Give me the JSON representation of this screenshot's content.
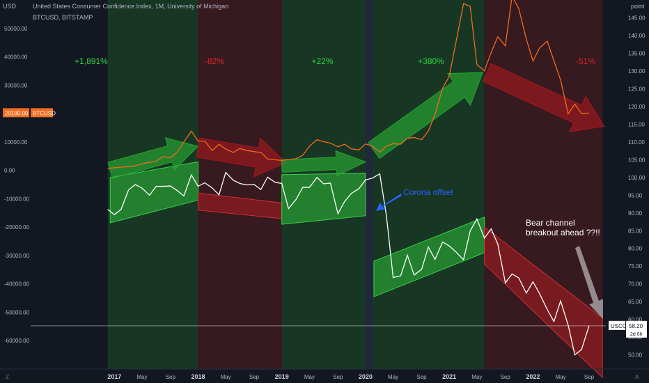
{
  "header": {
    "title": "United States Consumer Confidence Index, 1M, University of Michigan",
    "subtitle": "BTCUSD, BITSTAMP",
    "left_unit": "USD",
    "right_unit": "point"
  },
  "badges": {
    "btc_price": "20180.00",
    "btc_label": "BTCUSD",
    "usccl_label": "USCCI",
    "usccl_value": "58.20",
    "usccl_countdown": "2d 6h"
  },
  "annotations": {
    "p1": "+1,891%",
    "p2": "-82%",
    "p3": "+22%",
    "p4": "+380%",
    "p5": "-51%",
    "corona": "Corona offset",
    "bear_line1": "Bear channel",
    "bear_line2": "breakout ahead ??!!"
  },
  "corner_buttons": {
    "left": "Z",
    "right": "A"
  },
  "colors": {
    "background": "#131722",
    "btc_line": "#f26b1d",
    "usccl_line": "#ffffff",
    "green": "#26a431",
    "red": "#b22222",
    "corona": "#2962ff"
  },
  "chart_data": {
    "type": "line",
    "title": "United States Consumer Confidence Index, 1M, University of Michigan",
    "left_axis": {
      "unit": "USD",
      "ylim": [
        -70000,
        60000
      ],
      "ticks": [
        "50000.00",
        "40000.00",
        "30000.00",
        "20000.00",
        "10000.00",
        "0.00",
        "-10000.00",
        "-20000.00",
        "-30000.00",
        "-40000.00",
        "-50000.00",
        "-60000.00"
      ]
    },
    "right_axis": {
      "unit": "point",
      "ylim": [
        46,
        150
      ],
      "ticks": [
        "145.00",
        "140.00",
        "135.00",
        "130.00",
        "125.00",
        "120.00",
        "115.00",
        "110.00",
        "105.00",
        "100.00",
        "95.00",
        "90.00",
        "85.00",
        "80.00",
        "75.00",
        "70.00",
        "65.00",
        "60.00",
        "55.00",
        "50.00"
      ]
    },
    "x_axis": {
      "labels": [
        "2017",
        "May",
        "Sep",
        "2018",
        "May",
        "Sep",
        "2019",
        "May",
        "Sep",
        "2020",
        "May",
        "Sep",
        "2021",
        "May",
        "Sep",
        "2022",
        "May",
        "Sep"
      ],
      "label_dates": [
        2017.0,
        2017.33,
        2017.67,
        2018.0,
        2018.33,
        2018.67,
        2019.0,
        2019.33,
        2019.67,
        2020.0,
        2020.33,
        2020.67,
        2021.0,
        2021.33,
        2021.67,
        2022.0,
        2022.33,
        2022.67
      ],
      "range": [
        2016.0,
        2022.87
      ]
    },
    "series": [
      {
        "name": "BTCUSD",
        "t": [
          2016.92,
          2017.0,
          2017.08,
          2017.17,
          2017.25,
          2017.33,
          2017.42,
          2017.5,
          2017.58,
          2017.67,
          2017.75,
          2017.83,
          2017.92,
          2018.0,
          2018.08,
          2018.17,
          2018.25,
          2018.33,
          2018.42,
          2018.5,
          2018.58,
          2018.67,
          2018.75,
          2018.83,
          2018.92,
          2019.0,
          2019.08,
          2019.17,
          2019.25,
          2019.33,
          2019.42,
          2019.5,
          2019.58,
          2019.67,
          2019.75,
          2019.83,
          2019.92,
          2020.0,
          2020.08,
          2020.17,
          2020.25,
          2020.33,
          2020.42,
          2020.5,
          2020.58,
          2020.67,
          2020.75,
          2020.83,
          2020.92,
          2021.0,
          2021.08,
          2021.17,
          2021.25,
          2021.33,
          2021.42,
          2021.5,
          2021.58,
          2021.67,
          2021.75,
          2021.83,
          2021.92,
          2022.0,
          2022.08,
          2022.17,
          2022.25,
          2022.33,
          2022.42,
          2022.5,
          2022.58,
          2022.67
        ],
        "values": [
          700,
          900,
          1100,
          1300,
          1600,
          2300,
          2800,
          3200,
          4800,
          4400,
          6400,
          10000,
          13800,
          10300,
          10300,
          7000,
          9200,
          7500,
          6300,
          7700,
          7000,
          6600,
          6300,
          4000,
          3700,
          3500,
          3800,
          4100,
          5300,
          8500,
          10800,
          10100,
          9600,
          8300,
          9200,
          7600,
          7200,
          9300,
          8600,
          6400,
          8600,
          9400,
          9200,
          11300,
          11600,
          10800,
          13800,
          19700,
          28900,
          33100,
          45100,
          58700,
          57800,
          37300,
          35000,
          41500,
          47100,
          43800,
          61300,
          57000,
          46300,
          38500,
          43200,
          45500,
          38600,
          31800,
          19900,
          23300,
          20000,
          20200
        ]
      },
      {
        "name": "USCCI",
        "t": [
          2016.92,
          2017.0,
          2017.08,
          2017.17,
          2017.25,
          2017.33,
          2017.42,
          2017.5,
          2017.58,
          2017.67,
          2017.75,
          2017.83,
          2017.92,
          2018.0,
          2018.08,
          2018.17,
          2018.25,
          2018.33,
          2018.42,
          2018.5,
          2018.58,
          2018.67,
          2018.75,
          2018.83,
          2018.92,
          2019.0,
          2019.08,
          2019.17,
          2019.25,
          2019.33,
          2019.42,
          2019.5,
          2019.58,
          2019.67,
          2019.75,
          2019.83,
          2019.92,
          2020.0,
          2020.08,
          2020.17,
          2020.25,
          2020.33,
          2020.42,
          2020.5,
          2020.58,
          2020.67,
          2020.75,
          2020.83,
          2020.92,
          2021.0,
          2021.08,
          2021.17,
          2021.25,
          2021.33,
          2021.42,
          2021.5,
          2021.58,
          2021.67,
          2021.75,
          2021.83,
          2021.92,
          2022.0,
          2022.08,
          2022.17,
          2022.25,
          2022.33,
          2022.42,
          2022.5,
          2022.58,
          2022.67
        ],
        "values": [
          91.0,
          89.5,
          91.0,
          96.5,
          98.0,
          97.0,
          95.0,
          97.5,
          97.5,
          97.6,
          96.3,
          94.8,
          100.7,
          97.5,
          98.5,
          97.0,
          95.1,
          101.4,
          99.2,
          98.3,
          97.9,
          98.0,
          96.6,
          100.1,
          98.6,
          98.3,
          91.2,
          93.8,
          97.2,
          97.2,
          100.0,
          98.2,
          98.4,
          89.8,
          93.2,
          95.5,
          96.8,
          99.3,
          99.8,
          101.0,
          89.1,
          71.8,
          72.3,
          78.1,
          72.5,
          74.1,
          80.4,
          76.9,
          81.8,
          80.7,
          79.0,
          76.8,
          84.9,
          88.3,
          82.9,
          85.5,
          81.2,
          70.3,
          72.8,
          71.7,
          67.4,
          70.6,
          67.2,
          62.8,
          59.4,
          65.2,
          58.4,
          50.0,
          51.5,
          58.2
        ]
      }
    ],
    "shaded_periods": [
      {
        "color": "green",
        "range": [
          2016.92,
          2018.0
        ]
      },
      {
        "color": "red",
        "range": [
          2018.0,
          2019.0
        ]
      },
      {
        "color": "green",
        "range": [
          2019.0,
          2020.0
        ]
      },
      {
        "color": "green",
        "range": [
          2020.08,
          2021.42
        ]
      },
      {
        "color": "red",
        "range": [
          2021.42,
          2022.83
        ]
      }
    ],
    "horizontal_line": {
      "axis": "right",
      "value": 58.2
    },
    "grid": false,
    "legend": "none"
  }
}
